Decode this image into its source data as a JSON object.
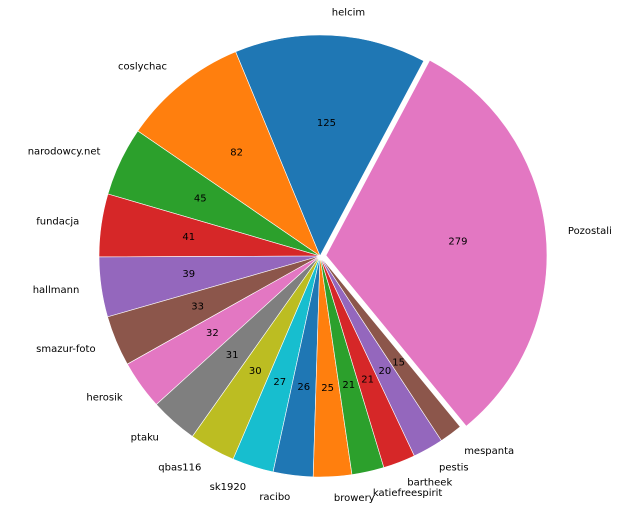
{
  "chart_data": {
    "type": "pie",
    "title": "",
    "slices": [
      {
        "label": "helcim",
        "value": 125,
        "color": "#1f77b4"
      },
      {
        "label": "coslychac",
        "value": 82,
        "color": "#ff7f0e"
      },
      {
        "label": "narodowcy.net",
        "value": 45,
        "color": "#2ca02c"
      },
      {
        "label": "fundacja",
        "value": 41,
        "color": "#d62728"
      },
      {
        "label": "hallmann",
        "value": 39,
        "color": "#9467bd"
      },
      {
        "label": "smazur-foto",
        "value": 33,
        "color": "#8c564b"
      },
      {
        "label": "herosik",
        "value": 32,
        "color": "#e377c2"
      },
      {
        "label": "ptaku",
        "value": 31,
        "color": "#7f7f7f"
      },
      {
        "label": "qbas116",
        "value": 30,
        "color": "#bcbd22"
      },
      {
        "label": "sk1920",
        "value": 27,
        "color": "#17becf"
      },
      {
        "label": "racibo",
        "value": 26,
        "color": "#1f77b4"
      },
      {
        "label": "browery",
        "value": 25,
        "color": "#ff7f0e"
      },
      {
        "label": "katiefreespirit",
        "value": 21,
        "color": "#2ca02c"
      },
      {
        "label": "bartheek",
        "value": 21,
        "color": "#d62728"
      },
      {
        "label": "pestis",
        "value": 20,
        "color": "#9467bd"
      },
      {
        "label": "mespanta",
        "value": 15,
        "color": "#8c564b"
      },
      {
        "label": "Pozostali",
        "value": 279,
        "color": "#e377c2",
        "explode": true
      }
    ],
    "value_labels": "absolute",
    "direction": "counterclockwise",
    "legend": "none"
  }
}
